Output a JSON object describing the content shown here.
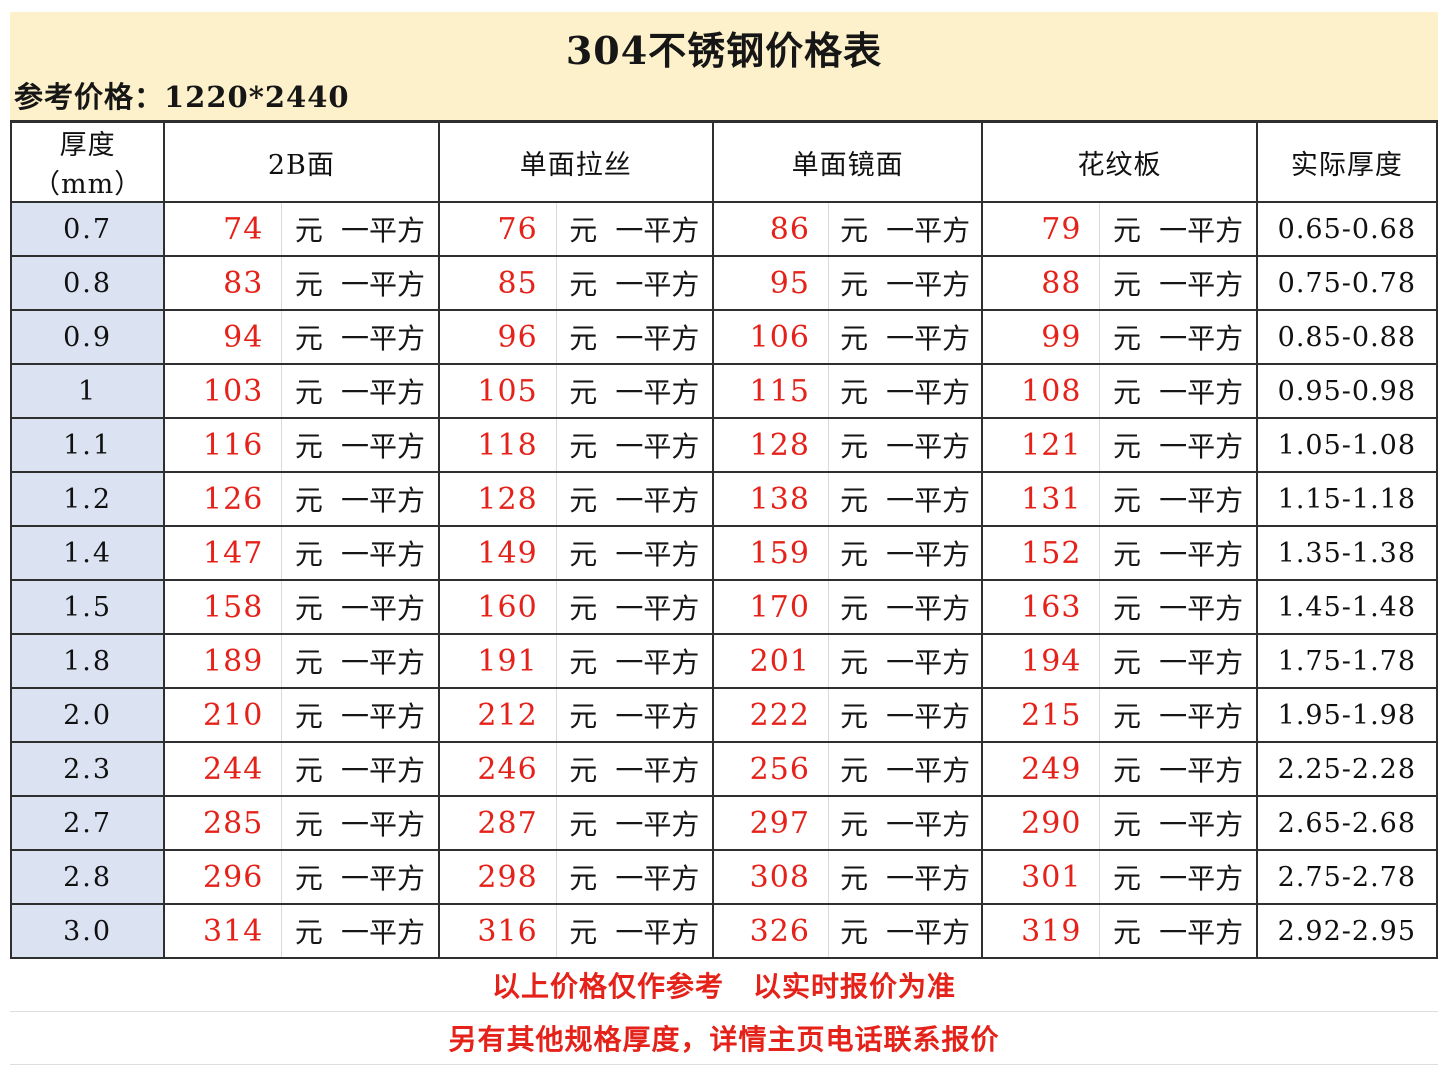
{
  "page": {
    "title": "304不锈钢价格表",
    "reference_label": "参考价格：1220*2440"
  },
  "colors": {
    "banner_bg": "#fcf1ca",
    "thickness_column_bg": "#dbe3f3",
    "price_red": "#e5221a",
    "border_dark": "#2f2f2f",
    "sub_divider_light": "#d9d9d9"
  },
  "table": {
    "headers": [
      "厚度（mm）",
      "2B面",
      "单面拉丝",
      "单面镜面",
      "花纹板",
      "实际厚度"
    ],
    "unit_yuan": "元",
    "unit_per_sqm": "一平方",
    "rows": [
      {
        "thickness": "0.7",
        "prices": [
          "74",
          "76",
          "86",
          "79"
        ],
        "actual": "0.65-0.68"
      },
      {
        "thickness": "0.8",
        "prices": [
          "83",
          "85",
          "95",
          "88"
        ],
        "actual": "0.75-0.78"
      },
      {
        "thickness": "0.9",
        "prices": [
          "94",
          "96",
          "106",
          "99"
        ],
        "actual": "0.85-0.88"
      },
      {
        "thickness": "1",
        "prices": [
          "103",
          "105",
          "115",
          "108"
        ],
        "actual": "0.95-0.98"
      },
      {
        "thickness": "1.1",
        "prices": [
          "116",
          "118",
          "128",
          "121"
        ],
        "actual": "1.05-1.08"
      },
      {
        "thickness": "1.2",
        "prices": [
          "126",
          "128",
          "138",
          "131"
        ],
        "actual": "1.15-1.18"
      },
      {
        "thickness": "1.4",
        "prices": [
          "147",
          "149",
          "159",
          "152"
        ],
        "actual": "1.35-1.38"
      },
      {
        "thickness": "1.5",
        "prices": [
          "158",
          "160",
          "170",
          "163"
        ],
        "actual": "1.45-1.48"
      },
      {
        "thickness": "1.8",
        "prices": [
          "189",
          "191",
          "201",
          "194"
        ],
        "actual": "1.75-1.78"
      },
      {
        "thickness": "2.0",
        "prices": [
          "210",
          "212",
          "222",
          "215"
        ],
        "actual": "1.95-1.98"
      },
      {
        "thickness": "2.3",
        "prices": [
          "244",
          "246",
          "256",
          "249"
        ],
        "actual": "2.25-2.28"
      },
      {
        "thickness": "2.7",
        "prices": [
          "285",
          "287",
          "297",
          "290"
        ],
        "actual": "2.65-2.68"
      },
      {
        "thickness": "2.8",
        "prices": [
          "296",
          "298",
          "308",
          "301"
        ],
        "actual": "2.75-2.78"
      },
      {
        "thickness": "3.0",
        "prices": [
          "314",
          "316",
          "326",
          "319"
        ],
        "actual": "2.92-2.95"
      }
    ]
  },
  "footer": {
    "note1": "以上价格仅作参考　以实时报价为准",
    "note2": "另有其他规格厚度，详情主页电话联系报价"
  }
}
